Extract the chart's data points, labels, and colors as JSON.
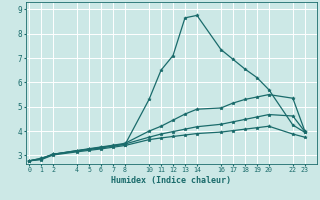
{
  "title": "",
  "xlabel": "Humidex (Indice chaleur)",
  "background_color": "#cce8e6",
  "grid_color": "#ffffff",
  "line_color": "#1a6b6b",
  "xticks": [
    0,
    1,
    2,
    4,
    5,
    6,
    7,
    8,
    10,
    11,
    12,
    13,
    14,
    16,
    17,
    18,
    19,
    20,
    22,
    23
  ],
  "yticks": [
    3,
    4,
    5,
    6,
    7,
    8,
    9
  ],
  "ylim": [
    2.65,
    9.3
  ],
  "xlim": [
    -0.3,
    24.0
  ],
  "series": [
    {
      "x": [
        0,
        1,
        2,
        4,
        5,
        6,
        7,
        8,
        10,
        11,
        12,
        13,
        14,
        16,
        17,
        18,
        19,
        20,
        22,
        23
      ],
      "y": [
        2.78,
        2.85,
        3.05,
        3.2,
        3.25,
        3.3,
        3.4,
        3.45,
        5.3,
        6.5,
        7.1,
        8.65,
        8.75,
        7.35,
        6.95,
        6.55,
        6.2,
        5.7,
        4.25,
        3.95
      ]
    },
    {
      "x": [
        0,
        1,
        2,
        4,
        5,
        6,
        7,
        8,
        10,
        11,
        12,
        13,
        14,
        16,
        17,
        18,
        19,
        20,
        22,
        23
      ],
      "y": [
        2.78,
        2.88,
        3.05,
        3.2,
        3.28,
        3.35,
        3.42,
        3.5,
        4.0,
        4.2,
        4.45,
        4.7,
        4.9,
        4.95,
        5.15,
        5.3,
        5.4,
        5.5,
        5.35,
        4.0
      ]
    },
    {
      "x": [
        0,
        1,
        2,
        4,
        5,
        6,
        7,
        8,
        10,
        11,
        12,
        13,
        14,
        16,
        17,
        18,
        19,
        20,
        22,
        23
      ],
      "y": [
        2.78,
        2.88,
        3.05,
        3.18,
        3.26,
        3.33,
        3.4,
        3.47,
        3.75,
        3.88,
        3.98,
        4.08,
        4.18,
        4.28,
        4.38,
        4.48,
        4.58,
        4.68,
        4.62,
        3.98
      ]
    },
    {
      "x": [
        0,
        1,
        2,
        4,
        5,
        6,
        7,
        8,
        10,
        11,
        12,
        13,
        14,
        16,
        17,
        18,
        19,
        20,
        22,
        23
      ],
      "y": [
        2.78,
        2.83,
        3.02,
        3.15,
        3.21,
        3.27,
        3.34,
        3.41,
        3.65,
        3.72,
        3.78,
        3.84,
        3.9,
        3.96,
        4.02,
        4.08,
        4.14,
        4.2,
        3.88,
        3.75
      ]
    }
  ]
}
